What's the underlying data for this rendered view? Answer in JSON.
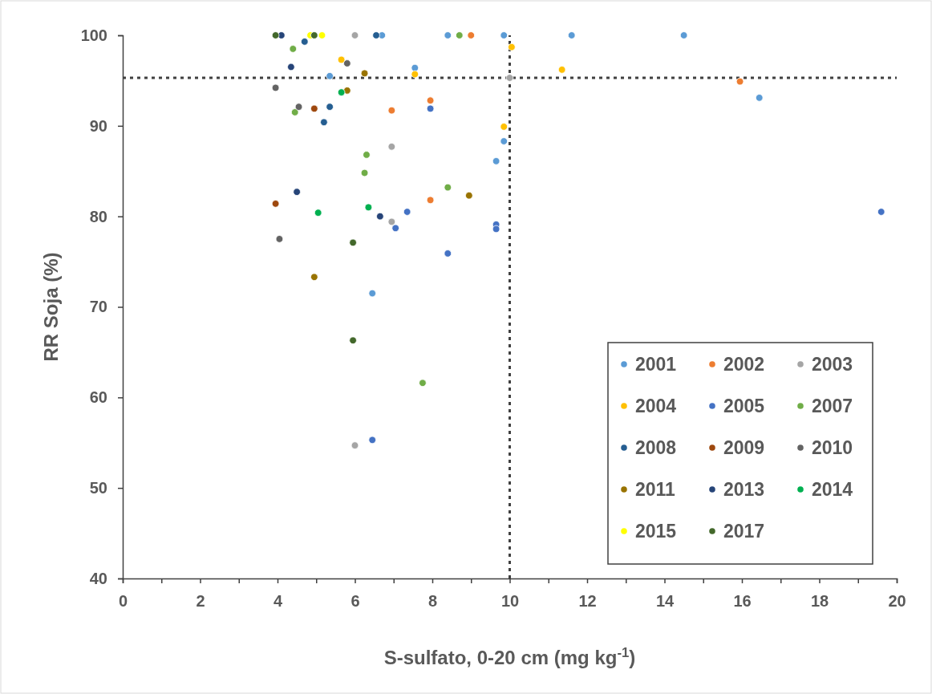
{
  "chart_data": {
    "type": "scatter",
    "xlabel": "S-sulfato, 0-20 cm (mg kg$^{-1}$)",
    "ylabel": "RR Soja (%)",
    "xlim": [
      0,
      20
    ],
    "ylim": [
      40,
      100
    ],
    "xticks": [
      0,
      {
        "value": 1,
        "label": null
      },
      2,
      {
        "value": 3,
        "label": null
      },
      4,
      {
        "value": 5,
        "label": null
      },
      6,
      {
        "value": 7,
        "label": null
      },
      8,
      {
        "value": 9,
        "label": null
      },
      10,
      {
        "value": 11,
        "label": null
      },
      12,
      {
        "value": 13,
        "label": null
      },
      14,
      {
        "value": 15,
        "label": null
      },
      16,
      {
        "value": 17,
        "label": null
      },
      18,
      {
        "value": 19,
        "label": null
      },
      20
    ],
    "yticks": [
      40,
      50,
      60,
      70,
      80,
      90,
      100
    ],
    "grid": false,
    "legend": "bottom right",
    "marker": "circle",
    "ref_lines": [
      {
        "axis": "y",
        "value": 95.3,
        "line_style": "dotted",
        "color": "#404040"
      },
      {
        "axis": "x",
        "value": 10,
        "line_style": "dotted",
        "color": "#404040"
      }
    ],
    "series": [
      {
        "name": "2001",
        "color": "#5b9bd5",
        "x": [
          6.7,
          8.4,
          9.85,
          11.6,
          14.5,
          5.35,
          7.55,
          9.85,
          9.65,
          16.45,
          6.45
        ],
        "values": [
          100,
          100,
          100,
          100,
          100,
          95.5,
          96.4,
          88.3,
          86.1,
          93.1,
          71.5
        ]
      },
      {
        "name": "2002",
        "color": "#ed7d31",
        "x": [
          9.0,
          15.95,
          6.95,
          7.95,
          7.95
        ],
        "values": [
          100,
          94.9,
          91.7,
          92.8,
          81.8
        ]
      },
      {
        "name": "2003",
        "color": "#a5a5a5",
        "x": [
          6.0,
          10.0,
          6.95,
          6.95,
          6.0
        ],
        "values": [
          100,
          95.3,
          87.7,
          79.4,
          54.7
        ]
      },
      {
        "name": "2004",
        "color": "#ffc000",
        "x": [
          10.05,
          5.65,
          7.55,
          11.35,
          9.85
        ],
        "values": [
          98.7,
          97.3,
          95.7,
          96.2,
          89.9
        ]
      },
      {
        "name": "2005",
        "color": "#4472c4",
        "x": [
          7.95,
          7.35,
          7.05,
          9.65,
          9.65,
          8.4,
          6.45,
          19.6
        ],
        "values": [
          91.9,
          80.5,
          78.7,
          79.1,
          78.6,
          75.9,
          55.3,
          80.5
        ]
      },
      {
        "name": "2007",
        "color": "#70ad47",
        "x": [
          8.7,
          4.4,
          4.45,
          6.3,
          6.25,
          8.4,
          7.75
        ],
        "values": [
          100,
          98.5,
          91.5,
          86.8,
          84.8,
          83.2,
          61.6
        ]
      },
      {
        "name": "2008",
        "color": "#255e91",
        "x": [
          6.55,
          4.7,
          5.35,
          5.2
        ],
        "values": [
          100,
          99.3,
          92.1,
          90.4
        ]
      },
      {
        "name": "2009",
        "color": "#9e480e",
        "x": [
          4.95,
          3.95
        ],
        "values": [
          91.9,
          81.4
        ]
      },
      {
        "name": "2010",
        "color": "#636363",
        "x": [
          5.8,
          3.95,
          4.55,
          4.05
        ],
        "values": [
          96.9,
          94.2,
          92.1,
          77.5
        ]
      },
      {
        "name": "2011",
        "color": "#997300",
        "x": [
          6.25,
          5.8,
          8.95,
          4.95
        ],
        "values": [
          95.8,
          93.9,
          82.3,
          73.3
        ]
      },
      {
        "name": "2013",
        "color": "#264478",
        "x": [
          4.1,
          4.35,
          4.5,
          6.65
        ],
        "values": [
          100,
          96.5,
          82.7,
          80.0
        ]
      },
      {
        "name": "2014",
        "color": "#00b050",
        "x": [
          5.65,
          5.05,
          6.35
        ],
        "values": [
          93.7,
          80.4,
          81.0
        ]
      },
      {
        "name": "2015",
        "color": "#ffff00",
        "x": [
          4.85,
          5.15
        ],
        "values": [
          100,
          100
        ]
      },
      {
        "name": "2017",
        "color": "#43682b",
        "x": [
          3.95,
          4.95,
          5.95,
          5.95
        ],
        "values": [
          100,
          100,
          77.1,
          66.3
        ]
      }
    ]
  }
}
